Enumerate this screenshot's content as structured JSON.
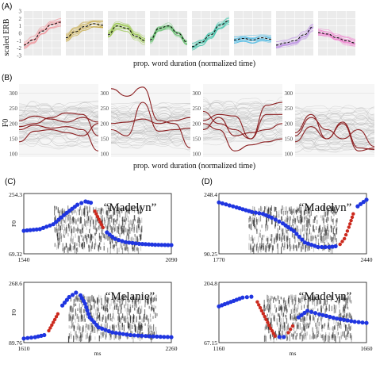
{
  "figure": {
    "panels": {
      "A": {
        "label": "(A)",
        "ylabel": "scaled ERB",
        "xlabel": "prop. word duration (normalized time)",
        "yticks": [
          "3",
          "2",
          "1",
          "0",
          "-1",
          "-2",
          "-3"
        ]
      },
      "B": {
        "label": "(B)",
        "ylabel": "F0",
        "xlabel": "prop. word duration (normalized time)",
        "yticks": [
          "300",
          "250",
          "200",
          "150",
          "100"
        ]
      },
      "C": {
        "label": "(C)"
      },
      "D": {
        "label": "(D)"
      }
    }
  },
  "chart_data": [
    {
      "type": "line",
      "panel": "A",
      "ylabel": "scaled ERB",
      "xlabel": "prop. word duration (normalized time)",
      "ylim": [
        -3,
        3
      ],
      "xlim": [
        0,
        1
      ],
      "grid": true,
      "colors": [
        "#f08a92",
        "#c2a233",
        "#8fc33a",
        "#62c06c",
        "#35c1a6",
        "#38b5e4",
        "#b98be4",
        "#f06fca"
      ],
      "series": [
        {
          "x": [
            0,
            0.25,
            0.5,
            0.75,
            1
          ],
          "y": [
            -1.6,
            -0.9,
            0.3,
            1.2,
            1.5
          ]
        },
        {
          "x": [
            0,
            0.25,
            0.5,
            0.75,
            1
          ],
          "y": [
            -0.6,
            0.2,
            0.9,
            1.3,
            1.1
          ]
        },
        {
          "x": [
            0,
            0.25,
            0.5,
            0.75,
            1
          ],
          "y": [
            -0.2,
            1.0,
            0.7,
            -0.4,
            -1.0
          ]
        },
        {
          "x": [
            0,
            0.25,
            0.5,
            0.75,
            1
          ],
          "y": [
            -0.9,
            0.7,
            1.0,
            0.0,
            -1.2
          ]
        },
        {
          "x": [
            0,
            0.25,
            0.5,
            0.75,
            1
          ],
          "y": [
            -1.8,
            -1.2,
            -0.2,
            1.1,
            1.7
          ]
        },
        {
          "x": [
            0,
            0.25,
            0.5,
            0.75,
            1
          ],
          "y": [
            -0.9,
            -0.7,
            -0.9,
            -0.6,
            -0.8
          ]
        },
        {
          "x": [
            0,
            0.25,
            0.5,
            0.75,
            1
          ],
          "y": [
            -1.6,
            -1.3,
            -1.0,
            -0.2,
            0.9
          ]
        },
        {
          "x": [
            0,
            0.25,
            0.5,
            0.75,
            1
          ],
          "y": [
            0.1,
            -0.1,
            -0.6,
            -1.0,
            -1.3
          ]
        }
      ]
    },
    {
      "type": "line",
      "panel": "B",
      "ylabel": "F0",
      "xlabel": "prop. word duration (normalized time)",
      "ylim": [
        90,
        330
      ],
      "yticks": [
        300,
        250,
        200,
        150,
        100
      ],
      "grid": true,
      "colors": {
        "background_curves": "#b5b5b5",
        "highlight_curves": "#8b1e20"
      },
      "subplots": [
        {
          "highlight": [
            [
              210,
              225,
              215,
              205,
              220,
              205
            ],
            [
              190,
              200,
              220,
              235,
              230,
              160
            ],
            [
              180,
              195,
              185,
              190,
              180,
              110
            ],
            [
              140,
              175,
              180,
              170,
              160,
              200
            ]
          ]
        },
        {
          "highlight": [
            [
              315,
              290,
              320,
              210,
              200,
              120
            ],
            [
              200,
              205,
              215,
              200,
              210,
              220
            ],
            [
              180,
              160,
              270,
              175,
              180,
              185
            ]
          ]
        },
        {
          "highlight": [
            [
              210,
              230,
              225,
              150,
              260,
              270
            ],
            [
              240,
              200,
              180,
              150,
              230,
              230
            ],
            [
              180,
              220,
              160,
              170,
              180,
              200
            ],
            [
              200,
              180,
              110,
              130,
              140,
              150
            ]
          ]
        },
        {
          "highlight": [
            [
              170,
              230,
              150,
              205,
              120,
              115
            ],
            [
              160,
              220,
              180,
              150,
              180,
              125
            ],
            [
              140,
              190,
              150,
              200,
              110,
              120
            ]
          ]
        }
      ]
    },
    {
      "type": "scatter",
      "panel": "C-top",
      "ylabel": "F0",
      "annotation": "“Madelyn”",
      "x_ticks": [
        "1540",
        "2090"
      ],
      "y_ticks": [
        "254.3",
        "69.32"
      ],
      "xlim": [
        1540,
        2090
      ],
      "ylim": [
        69.32,
        254.3
      ],
      "colors": {
        "voiced": "#1f35e0",
        "interpolated": "#cc2a1e"
      },
      "points_blue": [
        [
          1540,
          140
        ],
        [
          1600,
          145
        ],
        [
          1650,
          160
        ],
        [
          1700,
          195
        ],
        [
          1740,
          220
        ],
        [
          1770,
          230
        ],
        [
          1790,
          226
        ]
      ],
      "points_red": [
        [
          1805,
          200
        ],
        [
          1820,
          175
        ],
        [
          1835,
          150
        ]
      ],
      "points_blue_tail": [
        [
          1850,
          135
        ],
        [
          1880,
          115
        ],
        [
          1920,
          105
        ],
        [
          1970,
          100
        ],
        [
          2030,
          97
        ],
        [
          2090,
          96
        ]
      ]
    },
    {
      "type": "scatter",
      "panel": "C-bottom",
      "ylabel": "F0",
      "xlabel": "ms",
      "annotation": "“Melanie”",
      "x_ticks": [
        "1610",
        "2260"
      ],
      "y_ticks": [
        "268.6",
        "89.76"
      ],
      "xlim": [
        1610,
        2260
      ],
      "ylim": [
        89.76,
        268.6
      ],
      "colors": {
        "voiced": "#1f35e0",
        "interpolated": "#cc2a1e"
      },
      "points_blue_head": [
        [
          1610,
          102
        ],
        [
          1660,
          106
        ],
        [
          1700,
          112
        ]
      ],
      "points_red": [
        [
          1720,
          125
        ],
        [
          1740,
          150
        ],
        [
          1760,
          175
        ]
      ],
      "points_blue": [
        [
          1780,
          200
        ],
        [
          1810,
          225
        ],
        [
          1840,
          238
        ],
        [
          1860,
          230
        ],
        [
          1880,
          205
        ],
        [
          1900,
          165
        ],
        [
          1940,
          135
        ],
        [
          2000,
          120
        ],
        [
          2080,
          112
        ],
        [
          2180,
          108
        ],
        [
          2260,
          106
        ]
      ]
    },
    {
      "type": "scatter",
      "panel": "D-top",
      "annotation": "“Madelyn”",
      "x_ticks": [
        "1770",
        "2440"
      ],
      "y_ticks": [
        "248.4",
        "90.25"
      ],
      "xlim": [
        1770,
        2440
      ],
      "ylim": [
        90.25,
        248.4
      ],
      "colors": {
        "voiced": "#1f35e0",
        "interpolated": "#cc2a1e"
      },
      "points_blue": [
        [
          1770,
          225
        ],
        [
          1850,
          212
        ],
        [
          1920,
          200
        ],
        [
          1970,
          195
        ],
        [
          2010,
          185
        ],
        [
          2060,
          170
        ],
        [
          2110,
          150
        ],
        [
          2160,
          120
        ],
        [
          2220,
          108
        ],
        [
          2270,
          108
        ],
        [
          2300,
          110
        ]
      ],
      "points_red": [
        [
          2320,
          115
        ],
        [
          2340,
          130
        ],
        [
          2360,
          160
        ],
        [
          2380,
          195
        ]
      ],
      "points_blue_tail": [
        [
          2400,
          215
        ],
        [
          2440,
          232
        ]
      ]
    },
    {
      "type": "scatter",
      "panel": "D-bottom",
      "xlabel": "ms",
      "annotation": "“Madelyn”",
      "x_ticks": [
        "1160",
        "1660"
      ],
      "y_ticks": [
        "204.8",
        "67.15"
      ],
      "xlim": [
        1160,
        1660
      ],
      "ylim": [
        67.15,
        204.8
      ],
      "colors": {
        "voiced": "#1f35e0",
        "interpolated": "#cc2a1e"
      },
      "points_blue": [
        [
          1160,
          150
        ],
        [
          1200,
          160
        ],
        [
          1240,
          170
        ],
        [
          1270,
          172
        ]
      ],
      "points_red": [
        [
          1290,
          160
        ],
        [
          1305,
          140
        ],
        [
          1320,
          120
        ],
        [
          1335,
          100
        ],
        [
          1350,
          82
        ]
      ],
      "points_blue_mid": [
        [
          1365,
          80
        ],
        [
          1380,
          80
        ]
      ],
      "points_red2": [
        [
          1395,
          90
        ],
        [
          1410,
          105
        ]
      ],
      "points_blue_tail": [
        [
          1430,
          125
        ],
        [
          1460,
          140
        ],
        [
          1500,
          132
        ],
        [
          1560,
          122
        ],
        [
          1620,
          115
        ],
        [
          1660,
          112
        ]
      ]
    }
  ]
}
